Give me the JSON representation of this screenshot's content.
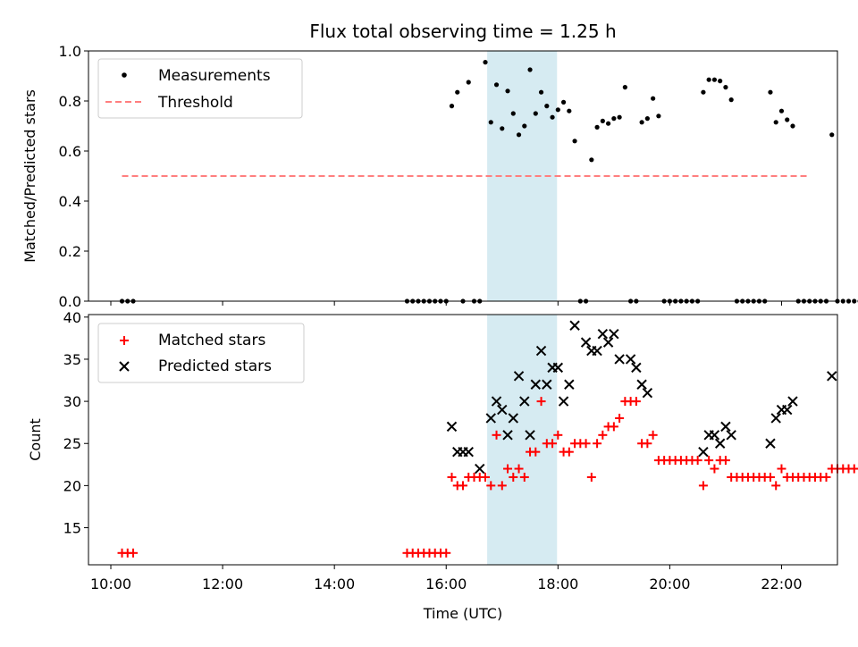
{
  "chart_data": [
    {
      "type": "scatter",
      "title": "Flux total observing time = 1.25 h",
      "xlabel": "",
      "ylabel": "Matched/Predicted stars",
      "ylim": [
        0,
        1
      ],
      "yticks": [
        "0.0",
        "0.2",
        "0.4",
        "0.6",
        "0.8",
        "1.0"
      ],
      "ytick_values": [
        0,
        0.2,
        0.4,
        0.6,
        0.8,
        1.0
      ],
      "legend_position": "upper-left",
      "highlight_span": [
        "16:44",
        "17:59"
      ],
      "highlight_color": "#add8e6",
      "series": [
        {
          "name": "Measurements",
          "marker": "dot",
          "color": "#000000",
          "points": [
            [
              "10:12",
              0
            ],
            [
              "10:18",
              0
            ],
            [
              "10:24",
              0
            ],
            [
              "15:18",
              0
            ],
            [
              "15:24",
              0
            ],
            [
              "15:30",
              0
            ],
            [
              "15:36",
              0
            ],
            [
              "15:42",
              0
            ],
            [
              "15:48",
              0
            ],
            [
              "15:54",
              0
            ],
            [
              "16:00",
              0
            ],
            [
              "16:06",
              0.78
            ],
            [
              "16:12",
              0.835
            ],
            [
              "16:18",
              0
            ],
            [
              "16:24",
              0.875
            ],
            [
              "16:30",
              0
            ],
            [
              "16:36",
              0
            ],
            [
              "16:42",
              0.955
            ],
            [
              "16:48",
              0.715
            ],
            [
              "16:54",
              0.865
            ],
            [
              "17:00",
              0.69
            ],
            [
              "17:06",
              0.84
            ],
            [
              "17:12",
              0.75
            ],
            [
              "17:18",
              0.665
            ],
            [
              "17:24",
              0.7
            ],
            [
              "17:30",
              0.925
            ],
            [
              "17:36",
              0.75
            ],
            [
              "17:42",
              0.835
            ],
            [
              "17:48",
              0.78
            ],
            [
              "17:54",
              0.735
            ],
            [
              "18:00",
              0.765
            ],
            [
              "18:06",
              0.795
            ],
            [
              "18:12",
              0.76
            ],
            [
              "18:18",
              0.64
            ],
            [
              "18:24",
              0
            ],
            [
              "18:30",
              0
            ],
            [
              "18:36",
              0.565
            ],
            [
              "18:42",
              0.695
            ],
            [
              "18:48",
              0.72
            ],
            [
              "18:54",
              0.71
            ],
            [
              "19:00",
              0.73
            ],
            [
              "19:06",
              0.735
            ],
            [
              "19:12",
              0.855
            ],
            [
              "19:18",
              0
            ],
            [
              "19:24",
              0
            ],
            [
              "19:30",
              0.715
            ],
            [
              "19:36",
              0.73
            ],
            [
              "19:42",
              0.81
            ],
            [
              "19:48",
              0.74
            ],
            [
              "19:54",
              0
            ],
            [
              "20:00",
              0
            ],
            [
              "20:06",
              0
            ],
            [
              "20:12",
              0
            ],
            [
              "20:18",
              0
            ],
            [
              "20:24",
              0
            ],
            [
              "20:30",
              0
            ],
            [
              "20:36",
              0.835
            ],
            [
              "20:42",
              0.885
            ],
            [
              "20:48",
              0.885
            ],
            [
              "20:54",
              0.88
            ],
            [
              "21:00",
              0.855
            ],
            [
              "21:06",
              0.805
            ],
            [
              "21:12",
              0
            ],
            [
              "21:18",
              0
            ],
            [
              "21:24",
              0
            ],
            [
              "21:30",
              0
            ],
            [
              "21:36",
              0
            ],
            [
              "21:42",
              0
            ],
            [
              "21:48",
              0.835
            ],
            [
              "21:54",
              0.715
            ],
            [
              "22:00",
              0.76
            ],
            [
              "22:06",
              0.725
            ],
            [
              "22:12",
              0.7
            ],
            [
              "22:18",
              0
            ],
            [
              "22:24",
              0
            ],
            [
              "22:30",
              0
            ],
            [
              "22:36",
              0
            ],
            [
              "22:42",
              0
            ],
            [
              "22:48",
              0
            ],
            [
              "22:54",
              0.665
            ],
            [
              "23:00",
              0
            ],
            [
              "23:06",
              0
            ],
            [
              "23:12",
              0
            ],
            [
              "23:18",
              0
            ],
            [
              "23:24",
              0
            ]
          ]
        },
        {
          "name": "Threshold",
          "marker": "dashed-line",
          "color": "#ff7f7f",
          "points": [
            [
              "10:12",
              0.5
            ],
            [
              "22:30",
              0.5
            ]
          ]
        }
      ]
    },
    {
      "type": "scatter",
      "title": "",
      "xlabel": "Time (UTC)",
      "ylabel": "Count",
      "ylim": [
        10.6,
        40.3
      ],
      "xlim": [
        "09:36",
        "23:00"
      ],
      "xticks": [
        "10:00",
        "12:00",
        "14:00",
        "16:00",
        "18:00",
        "20:00",
        "22:00"
      ],
      "yticks": [
        "15",
        "20",
        "25",
        "30",
        "35",
        "40"
      ],
      "ytick_values": [
        15,
        20,
        25,
        30,
        35,
        40
      ],
      "legend_position": "upper-left",
      "highlight_span": [
        "16:44",
        "17:59"
      ],
      "highlight_color": "#add8e6",
      "series": [
        {
          "name": "Matched stars",
          "marker": "plus",
          "color": "#ff0000",
          "points": [
            [
              "10:12",
              12
            ],
            [
              "10:18",
              12
            ],
            [
              "10:24",
              12
            ],
            [
              "15:18",
              12
            ],
            [
              "15:24",
              12
            ],
            [
              "15:30",
              12
            ],
            [
              "15:36",
              12
            ],
            [
              "15:42",
              12
            ],
            [
              "15:48",
              12
            ],
            [
              "15:54",
              12
            ],
            [
              "16:00",
              12
            ],
            [
              "16:06",
              21
            ],
            [
              "16:12",
              20
            ],
            [
              "16:18",
              20
            ],
            [
              "16:24",
              21
            ],
            [
              "16:30",
              21
            ],
            [
              "16:36",
              21
            ],
            [
              "16:42",
              21
            ],
            [
              "16:48",
              20
            ],
            [
              "16:54",
              26
            ],
            [
              "17:00",
              20
            ],
            [
              "17:06",
              22
            ],
            [
              "17:12",
              21
            ],
            [
              "17:18",
              22
            ],
            [
              "17:24",
              21
            ],
            [
              "17:30",
              24
            ],
            [
              "17:36",
              24
            ],
            [
              "17:42",
              30
            ],
            [
              "17:48",
              25
            ],
            [
              "17:54",
              25
            ],
            [
              "18:00",
              26
            ],
            [
              "18:06",
              24
            ],
            [
              "18:12",
              24
            ],
            [
              "18:18",
              25
            ],
            [
              "18:24",
              25
            ],
            [
              "18:30",
              25
            ],
            [
              "18:36",
              21
            ],
            [
              "18:42",
              25
            ],
            [
              "18:48",
              26
            ],
            [
              "18:54",
              27
            ],
            [
              "19:00",
              27
            ],
            [
              "19:06",
              28
            ],
            [
              "19:12",
              30
            ],
            [
              "19:18",
              30
            ],
            [
              "19:24",
              30
            ],
            [
              "19:30",
              25
            ],
            [
              "19:36",
              25
            ],
            [
              "19:42",
              26
            ],
            [
              "19:48",
              23
            ],
            [
              "19:54",
              23
            ],
            [
              "20:00",
              23
            ],
            [
              "20:06",
              23
            ],
            [
              "20:12",
              23
            ],
            [
              "20:18",
              23
            ],
            [
              "20:24",
              23
            ],
            [
              "20:30",
              23
            ],
            [
              "20:36",
              20
            ],
            [
              "20:42",
              23
            ],
            [
              "20:48",
              22
            ],
            [
              "20:54",
              23
            ],
            [
              "21:00",
              23
            ],
            [
              "21:06",
              21
            ],
            [
              "21:12",
              21
            ],
            [
              "21:18",
              21
            ],
            [
              "21:24",
              21
            ],
            [
              "21:30",
              21
            ],
            [
              "21:36",
              21
            ],
            [
              "21:42",
              21
            ],
            [
              "21:48",
              21
            ],
            [
              "21:54",
              20
            ],
            [
              "22:00",
              22
            ],
            [
              "22:06",
              21
            ],
            [
              "22:12",
              21
            ],
            [
              "22:18",
              21
            ],
            [
              "22:24",
              21
            ],
            [
              "22:30",
              21
            ],
            [
              "22:36",
              21
            ],
            [
              "22:42",
              21
            ],
            [
              "22:48",
              21
            ],
            [
              "22:54",
              22
            ],
            [
              "23:00",
              22
            ],
            [
              "23:06",
              22
            ],
            [
              "23:12",
              22
            ],
            [
              "23:18",
              22
            ],
            [
              "23:24",
              22
            ]
          ]
        },
        {
          "name": "Predicted stars",
          "marker": "x",
          "color": "#000000",
          "points": [
            [
              "16:06",
              27
            ],
            [
              "16:12",
              24
            ],
            [
              "16:18",
              24
            ],
            [
              "16:24",
              24
            ],
            [
              "16:36",
              22
            ],
            [
              "16:48",
              28
            ],
            [
              "16:54",
              30
            ],
            [
              "17:00",
              29
            ],
            [
              "17:06",
              26
            ],
            [
              "17:12",
              28
            ],
            [
              "17:18",
              33
            ],
            [
              "17:24",
              30
            ],
            [
              "17:30",
              26
            ],
            [
              "17:36",
              32
            ],
            [
              "17:42",
              36
            ],
            [
              "17:48",
              32
            ],
            [
              "17:54",
              34
            ],
            [
              "18:00",
              34
            ],
            [
              "18:06",
              30
            ],
            [
              "18:12",
              32
            ],
            [
              "18:18",
              39
            ],
            [
              "18:30",
              37
            ],
            [
              "18:36",
              36
            ],
            [
              "18:42",
              36
            ],
            [
              "18:48",
              38
            ],
            [
              "18:54",
              37
            ],
            [
              "19:00",
              38
            ],
            [
              "19:06",
              35
            ],
            [
              "19:18",
              35
            ],
            [
              "19:24",
              34
            ],
            [
              "19:30",
              32
            ],
            [
              "19:36",
              31
            ],
            [
              "20:36",
              24
            ],
            [
              "20:42",
              26
            ],
            [
              "20:48",
              26
            ],
            [
              "20:54",
              25
            ],
            [
              "21:00",
              27
            ],
            [
              "21:06",
              26
            ],
            [
              "21:48",
              25
            ],
            [
              "21:54",
              28
            ],
            [
              "22:00",
              29
            ],
            [
              "22:06",
              29
            ],
            [
              "22:12",
              30
            ],
            [
              "22:54",
              33
            ]
          ]
        }
      ]
    }
  ]
}
